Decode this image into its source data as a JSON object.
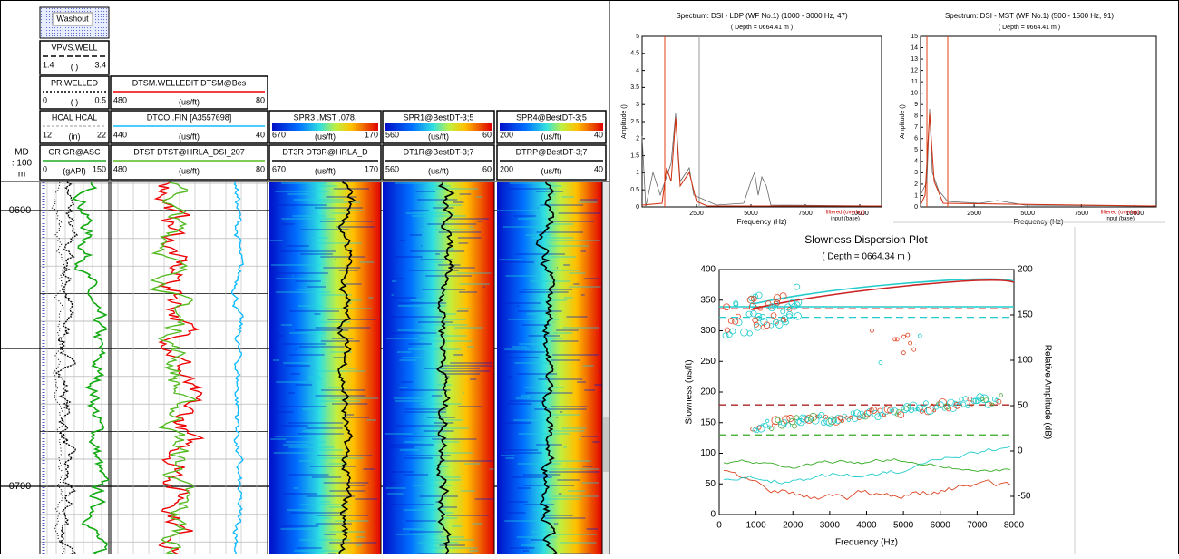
{
  "log_header": {
    "depth": {
      "label": "MD",
      "scale": ": 100",
      "unit": "m"
    },
    "washout": "Washout",
    "curves": [
      {
        "name": "VPVS.WELL",
        "left": 1.4,
        "unit": "( )",
        "right": 3.4
      },
      {
        "name": "PR.WELLED",
        "left": 0,
        "unit": "( )",
        "right": 0.5
      },
      {
        "name": "HCAL HCAL",
        "left": 12,
        "unit": "(in)",
        "right": 22
      },
      {
        "name": "GR GR@ASC",
        "left": 0,
        "unit": "(gAPI)",
        "right": 150
      },
      {
        "name": "DTSM.WELLEDIT DTSM@Bes",
        "left": 480,
        "unit": "(us/ft)",
        "right": 80
      },
      {
        "name": "DTCO .FIN [A3557698]",
        "left": 440,
        "unit": "(us/ft)",
        "right": 40
      },
      {
        "name": "DTST DTST@HRLA_DSI_207",
        "left": 480,
        "unit": "(us/ft)",
        "right": 80
      },
      {
        "name": "SPR3 .MST .078.",
        "left": 670,
        "unit": "(us/ft)",
        "right": 170
      },
      {
        "name": "DT3R DT3R@HRLA_D",
        "left": 670,
        "unit": "(us/ft)",
        "right": 170
      },
      {
        "name": "SPR1@BestDT-3;5",
        "left": 560,
        "unit": "(us/ft)",
        "right": 60
      },
      {
        "name": "DT1R@BestDT-3;7",
        "left": 560,
        "unit": "(us/ft)",
        "right": 60
      },
      {
        "name": "SPR4@BestDT-3;5",
        "left": 200,
        "unit": "(us/ft)",
        "right": 40
      },
      {
        "name": "DTRP@BestDT-3;7",
        "left": 200,
        "unit": "(us/ft)",
        "right": 40
      }
    ]
  },
  "depth_labels": [
    "0600",
    "0700"
  ],
  "spectrum_ldp": {
    "title": "Spectrum: DSI - LDP (WF No.1) (1000 - 3000 Hz, 47)",
    "depth": "( Depth = 0664.41 m )",
    "xlabel": "Frequency (Hz)",
    "ylabel": "Amplitude ()",
    "legend": [
      "filtered (overlay)",
      "input (base)"
    ],
    "xlim": [
      0,
      11000
    ],
    "ylim": [
      0,
      5
    ],
    "xticks": [
      2500,
      5000,
      7500,
      10000
    ],
    "yticks": [
      0,
      0.5,
      1,
      1.5,
      2,
      2.5,
      3,
      3.5,
      4,
      4.5,
      5
    ]
  },
  "spectrum_mst": {
    "title": "Spectrum: DSI - MST (WF No.1) (500 - 1500 Hz, 91)",
    "depth": "( Depth = 0664.41 m )",
    "xlabel": "Frequency (Hz)",
    "ylabel": "Amplitude ()",
    "legend": [
      "filtered (overlay)",
      "input (base)"
    ],
    "xlim": [
      0,
      11000
    ],
    "ylim": [
      0,
      15
    ],
    "xticks": [
      2500,
      5000,
      7500,
      10000
    ],
    "yticks": [
      0,
      1,
      2,
      3,
      4,
      5,
      6,
      7,
      8,
      9,
      10,
      11,
      12,
      13,
      14,
      15
    ]
  },
  "dispersion": {
    "title": "Slowness Dispersion Plot",
    "depth": "( Depth = 0664.34 m )",
    "xlabel": "Frequency (Hz)",
    "ylabel": "Slowness (us/ft)",
    "y2label": "Relative Amplitude (dB)",
    "xlim": [
      0,
      8000
    ],
    "ylim": [
      0,
      400
    ],
    "y2lim": [
      -70,
      200
    ],
    "xticks": [
      0,
      1000,
      2000,
      3000,
      4000,
      5000,
      6000,
      7000,
      8000
    ],
    "yticks": [
      0,
      50,
      100,
      150,
      200,
      250,
      300,
      350,
      400
    ],
    "y2ticks": [
      -50,
      0,
      50,
      100,
      150,
      200
    ]
  }
}
